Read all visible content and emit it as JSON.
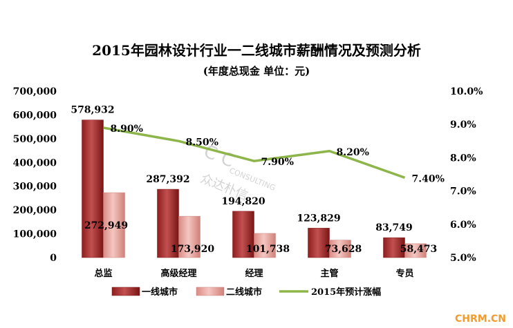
{
  "chart_data": {
    "type": "bar+line",
    "title": "2015年园林设计行业一二线城市薪酬情况及预测分析",
    "subtitle": "(年度总现金  单位：元)",
    "categories": [
      "总监",
      "高级经理",
      "经理",
      "主管",
      "专员"
    ],
    "series": [
      {
        "name": "一线城市",
        "type": "bar",
        "axis": "left",
        "color": "#a52a2a",
        "values": [
          578932,
          287392,
          194820,
          123829,
          83749
        ],
        "labels": [
          "578,932",
          "287,392",
          "194,820",
          "123,829",
          "83,749"
        ]
      },
      {
        "name": "二线城市",
        "type": "bar",
        "axis": "left",
        "color": "#e8a09a",
        "values": [
          272949,
          173920,
          101738,
          73628,
          58473
        ],
        "labels": [
          "272,949",
          "173,920",
          "101,738",
          "73,628",
          "58,473"
        ]
      },
      {
        "name": "2015年预计涨幅",
        "type": "line",
        "axis": "right",
        "color": "#8db54a",
        "values": [
          8.9,
          8.5,
          7.9,
          8.2,
          7.4
        ],
        "labels": [
          "8.90%",
          "8.50%",
          "7.90%",
          "8.20%",
          "7.40%"
        ]
      }
    ],
    "y_left": {
      "min": 0,
      "max": 700000,
      "ticks": [
        "0",
        "100,000",
        "200,000",
        "300,000",
        "400,000",
        "500,000",
        "600,000",
        "700,000"
      ]
    },
    "y_right": {
      "min": 5,
      "max": 10,
      "ticks": [
        "5.0%",
        "6.0%",
        "7.0%",
        "8.0%",
        "9.0%",
        "10.0%"
      ]
    },
    "grid": false,
    "legend_position": "bottom"
  },
  "watermark": {
    "line1": "C C",
    "line2": "CONSULTING",
    "line3": "众达朴信"
  },
  "brand": "CHRM.CN"
}
